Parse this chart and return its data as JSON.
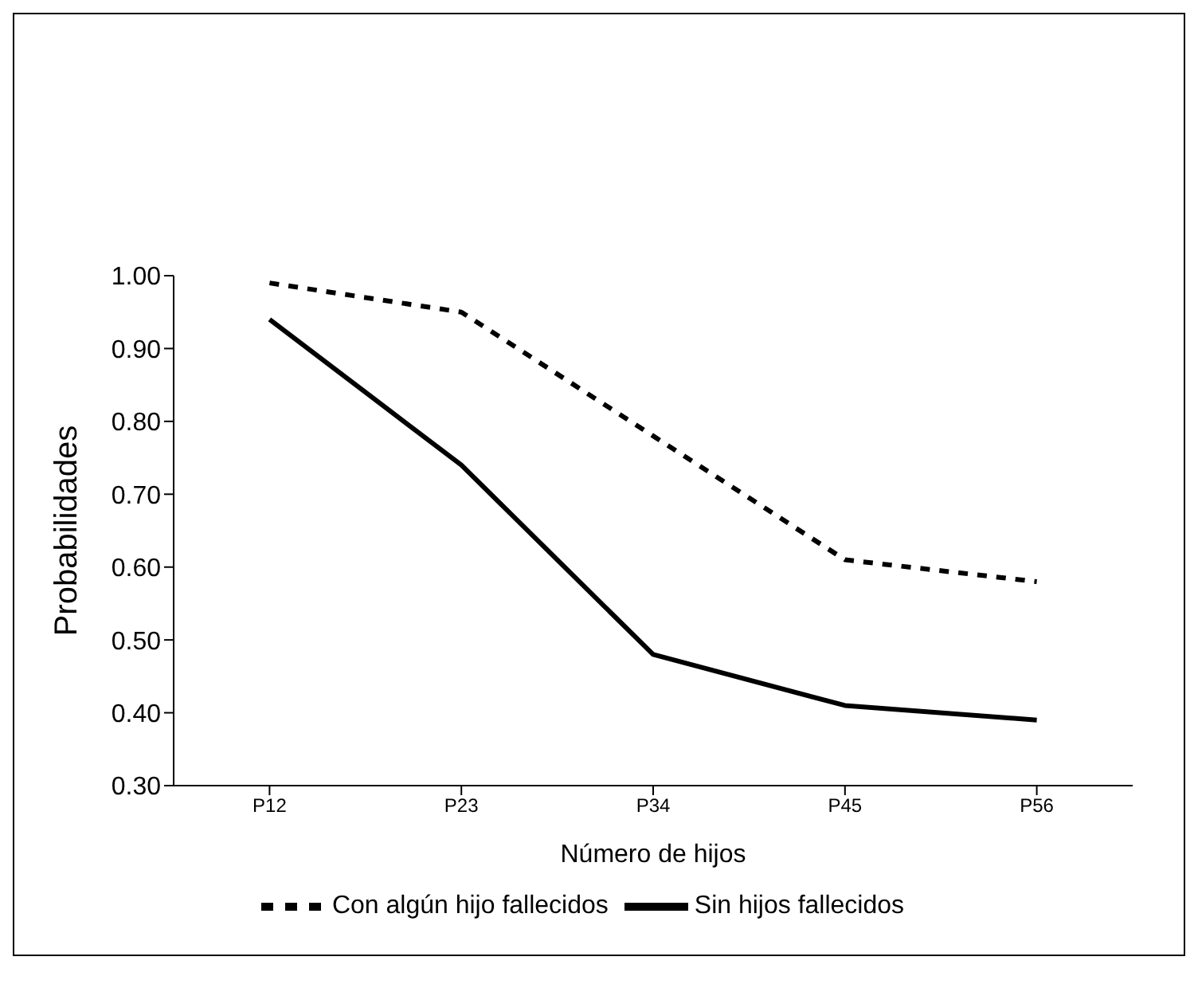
{
  "chart_data": {
    "type": "line",
    "xlabel": "Número de hijos",
    "ylabel": "Probabilidades",
    "categories": [
      "P12",
      "P23",
      "P34",
      "P45",
      "P56"
    ],
    "series": [
      {
        "name": "Sin hijos fallecidos",
        "color": "#000000",
        "values": [
          0.94,
          0.74,
          0.48,
          0.41,
          0.39
        ],
        "line_style": "solid"
      },
      {
        "name": "Con algún hijo fallecidos",
        "color": "#000000",
        "values": [
          0.99,
          0.95,
          0.78,
          0.61,
          0.58
        ],
        "line_style": "dashed"
      }
    ],
    "ylim": [
      0.3,
      1.0
    ],
    "yticks": [
      {
        "value": 0.3,
        "label": "0.30"
      },
      {
        "value": 0.4,
        "label": "0.40"
      },
      {
        "value": 0.5,
        "label": "0.50"
      },
      {
        "value": 0.6,
        "label": "0.60"
      },
      {
        "value": 0.7,
        "label": "0.70"
      },
      {
        "value": 0.8,
        "label": "0.80"
      },
      {
        "value": 0.9,
        "label": "0.90"
      },
      {
        "value": 1.0,
        "label": "1.00"
      }
    ],
    "grid": false,
    "legend": "bottom",
    "marker": "none"
  }
}
